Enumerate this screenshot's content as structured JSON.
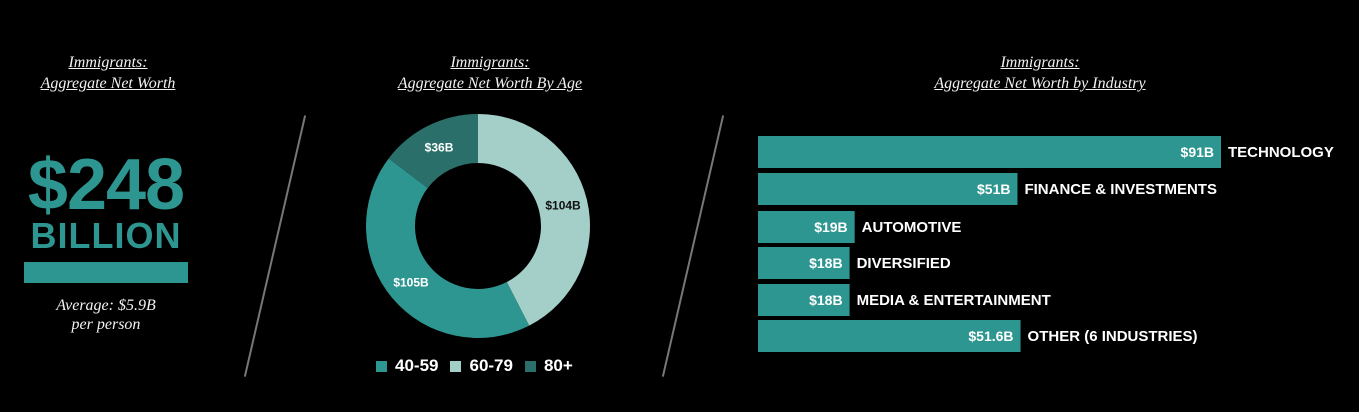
{
  "panel1": {
    "title_line1": "Immigrants:",
    "title_line2": "Aggregate Net Worth",
    "value": "$248",
    "unit": "BILLION",
    "avg_line1": "Average: $5.9B",
    "avg_line2": "per person"
  },
  "colors": {
    "c4059": "#2e9690",
    "c6079": "#a3cfc8",
    "c80": "#2a6f6a",
    "bar": "#2e9690"
  },
  "chart_data": [
    {
      "type": "pie",
      "title": "Immigrants: Aggregate Net Worth By Age",
      "title_line1": "Immigrants:",
      "title_line2": "Aggregate Net Worth By Age",
      "categories": [
        "40-59",
        "60-79",
        "80+"
      ],
      "values": [
        105,
        104,
        36
      ],
      "labels": [
        "$105B",
        "$104B",
        "$36B"
      ],
      "donut": true
    },
    {
      "type": "bar",
      "orientation": "horizontal",
      "title": "Immigrants: Aggregate Net Worth by Industry",
      "title_line1": "Immigrants:",
      "title_line2": "Aggregate Net Worth by Industry",
      "categories": [
        "TECHNOLOGY",
        "FINANCE & INVESTMENTS",
        "AUTOMOTIVE",
        "DIVERSIFIED",
        "MEDIA & ENTERTAINMENT",
        "OTHER (6 INDUSTRIES)"
      ],
      "values": [
        91,
        51,
        19,
        18,
        18,
        51.6
      ],
      "labels": [
        "$91B",
        "$51B",
        "$19B",
        "$18B",
        "$18B",
        "$51.6B"
      ]
    }
  ]
}
